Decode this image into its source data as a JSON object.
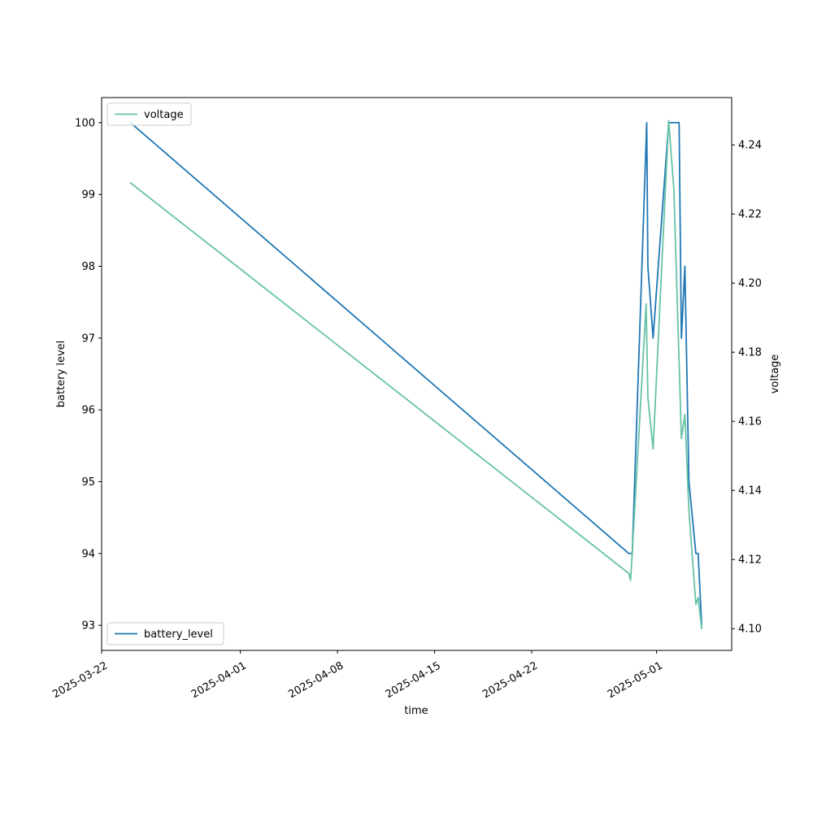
{
  "chart_data": {
    "type": "line",
    "xlabel": "time",
    "ylabel_left": "battery level",
    "ylabel_right": "voltage",
    "x_ticks": [
      "2025-03-22",
      "2025-04-01",
      "2025-04-08",
      "2025-04-15",
      "2025-04-22",
      "2025-05-01"
    ],
    "x_range": [
      "2025-03-22T00:00",
      "2025-05-06T10:00"
    ],
    "ylim_left": [
      92.65,
      100.35
    ],
    "ylim_right": [
      4.0937,
      4.2537
    ],
    "y_ticks_left": [
      93,
      94,
      95,
      96,
      97,
      98,
      99,
      100
    ],
    "y_ticks_right": [
      4.1,
      4.12,
      4.14,
      4.16,
      4.18,
      4.2,
      4.22,
      4.24
    ],
    "series": [
      {
        "name": "battery_level",
        "axis": "left",
        "color": "#1f77b4",
        "legend_position": "lower-left",
        "points": [
          [
            "2025-03-24T02:00",
            100
          ],
          [
            "2025-04-29T00:00",
            94
          ],
          [
            "2025-04-29T06:00",
            94
          ],
          [
            "2025-04-30T07:00",
            100
          ],
          [
            "2025-04-30T09:00",
            98
          ],
          [
            "2025-04-30T18:00",
            97
          ],
          [
            "2025-05-01T21:00",
            100
          ],
          [
            "2025-05-02T15:00",
            100
          ],
          [
            "2025-05-02T19:00",
            97
          ],
          [
            "2025-05-03T01:00",
            98
          ],
          [
            "2025-05-03T08:00",
            95
          ],
          [
            "2025-05-03T20:00",
            94
          ],
          [
            "2025-05-04T00:00",
            94
          ],
          [
            "2025-05-04T06:00",
            93
          ]
        ]
      },
      {
        "name": "voltage",
        "axis": "right",
        "color": "#66c2a5",
        "legend_position": "upper-left",
        "points": [
          [
            "2025-03-24T02:00",
            4.229
          ],
          [
            "2025-04-29T00:00",
            4.116
          ],
          [
            "2025-04-29T03:00",
            4.114
          ],
          [
            "2025-04-29T06:00",
            4.122
          ],
          [
            "2025-04-30T06:00",
            4.194
          ],
          [
            "2025-04-30T09:00",
            4.167
          ],
          [
            "2025-04-30T18:00",
            4.152
          ],
          [
            "2025-05-01T21:00",
            4.247
          ],
          [
            "2025-05-02T06:00",
            4.227
          ],
          [
            "2025-05-02T19:00",
            4.155
          ],
          [
            "2025-05-03T01:00",
            4.162
          ],
          [
            "2025-05-03T08:00",
            4.134
          ],
          [
            "2025-05-03T20:00",
            4.107
          ],
          [
            "2025-05-04T00:00",
            4.109
          ],
          [
            "2025-05-04T06:00",
            4.1
          ]
        ]
      }
    ]
  }
}
